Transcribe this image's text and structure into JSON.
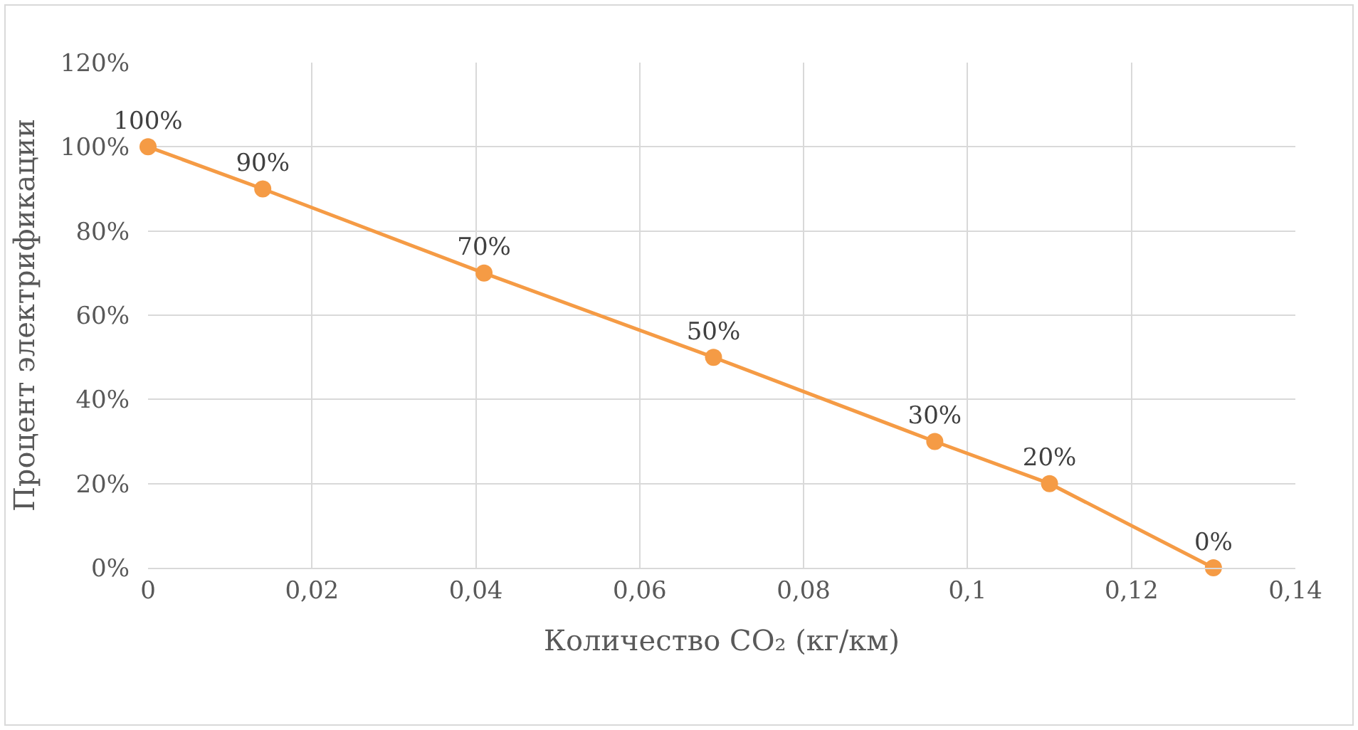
{
  "chart_data": {
    "type": "line",
    "xlabel": "Количество CO₂ (кг/км)",
    "ylabel": "Процент электрификации",
    "x": [
      0,
      0.014,
      0.041,
      0.069,
      0.096,
      0.11,
      0.13
    ],
    "series": [
      {
        "color": "#f59b45",
        "values": [
          100,
          90,
          70,
          50,
          30,
          20,
          0
        ],
        "value_labels": [
          "100%",
          "90%",
          "70%",
          "50%",
          "30%",
          "20%",
          "0%"
        ]
      }
    ],
    "xlim": [
      0,
      0.14
    ],
    "xticks": [
      0,
      {
        "value": 0.02,
        "label": "0,02"
      },
      {
        "value": 0.04,
        "label": "0,04"
      },
      {
        "value": 0.06,
        "label": "0,06"
      },
      {
        "value": 0.08,
        "label": "0,08"
      },
      {
        "value": 0.1,
        "label": "0,1"
      },
      {
        "value": 0.12,
        "label": "0,12"
      },
      {
        "value": 0.14,
        "label": "0,14"
      }
    ],
    "ylim": [
      0,
      120
    ],
    "yticks": [
      {
        "value": 0,
        "label": "0%"
      },
      {
        "value": 20,
        "label": "20%"
      },
      {
        "value": 40,
        "label": "40%"
      },
      {
        "value": 60,
        "label": "60%"
      },
      {
        "value": 80,
        "label": "80%"
      },
      {
        "value": 100,
        "label": "100%"
      },
      {
        "value": 120,
        "label": "120%"
      }
    ],
    "grid": true,
    "marker": "circle",
    "line_style": "solid"
  }
}
